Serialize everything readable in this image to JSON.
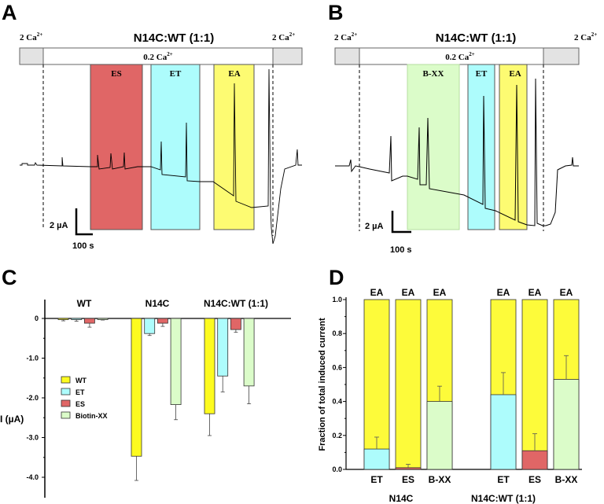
{
  "panels": {
    "A": {
      "letter": "A",
      "title": "N14C:WT (1:1)",
      "left_solution": "2 Ca",
      "right_solution": "2 Ca",
      "middle_solution": "0.2 Ca",
      "superscript": "2+",
      "windows": [
        {
          "label": "ES",
          "color": "#e06666"
        },
        {
          "label": "ET",
          "color": "#adfcfc"
        },
        {
          "label": "EA",
          "color": "#fdfb72"
        }
      ],
      "scale_current": "2 µA",
      "scale_time": "100 s"
    },
    "B": {
      "letter": "B",
      "title": "N14C:WT (1:1)",
      "left_solution": "2 Ca",
      "right_solution": "2 Ca",
      "middle_solution": "0.2 Ca",
      "superscript": "2+",
      "windows": [
        {
          "label": "B-XX",
          "color": "#dbfcc9"
        },
        {
          "label": "ET",
          "color": "#adfcfc"
        },
        {
          "label": "EA",
          "color": "#fdfb72"
        }
      ],
      "scale_current": "2 µA",
      "scale_time": "100 s"
    },
    "C": {
      "letter": "C"
    },
    "D": {
      "letter": "D"
    }
  },
  "chart_data": [
    {
      "type": "bar",
      "panel": "C",
      "ylabel": "I (µA)",
      "ylim": [
        -4.5,
        0.5
      ],
      "yticks": [
        "0",
        "-1.0",
        "-2.0",
        "-3.0",
        "-4.0"
      ],
      "categories": [
        "WT",
        "N14C",
        "N14C:WT (1:1)"
      ],
      "legend_position": "left",
      "series": [
        {
          "name": "WT",
          "color": "#fdfb1f",
          "values": [
            -0.03,
            -3.47,
            -2.4
          ],
          "errors": [
            0.03,
            0.61,
            0.55
          ]
        },
        {
          "name": "ET",
          "color": "#adfcfc",
          "values": [
            -0.02,
            -0.38,
            -1.45
          ],
          "errors": [
            0.05,
            0.05,
            0.4
          ]
        },
        {
          "name": "ES",
          "color": "#e06666",
          "values": [
            -0.12,
            -0.12,
            -0.28
          ],
          "errors": [
            0.1,
            0.08,
            0.07
          ]
        },
        {
          "name": "Biotin-XX",
          "color": "#dbfcc9",
          "values": [
            -0.03,
            -2.17,
            -1.7
          ],
          "errors": [
            0.01,
            0.38,
            0.45
          ]
        }
      ]
    },
    {
      "type": "bar",
      "stacked": true,
      "panel": "D",
      "ylabel": "Fraction of total induced current",
      "ylim": [
        0,
        1.0
      ],
      "yticks": [
        "0.0",
        "0.2",
        "0.4",
        "0.6",
        "0.8",
        "1.0"
      ],
      "groups": [
        "N14C",
        "N14C:WT (1:1)"
      ],
      "top_label": "EA",
      "top_color": "#fdfb3a",
      "bars": [
        {
          "group": "N14C",
          "label": "ET",
          "color": "#adfcfc",
          "value": 0.12,
          "error_top": 0.19
        },
        {
          "group": "N14C",
          "label": "ES",
          "color": "#e06666",
          "value": 0.01,
          "error_top": 0.03
        },
        {
          "group": "N14C",
          "label": "B-XX",
          "color": "#dbfcc9",
          "value": 0.4,
          "error_top": 0.49
        },
        {
          "group": "N14C:WT (1:1)",
          "label": "ET",
          "color": "#adfcfc",
          "value": 0.44,
          "error_top": 0.57
        },
        {
          "group": "N14C:WT (1:1)",
          "label": "ES",
          "color": "#e06666",
          "value": 0.11,
          "error_top": 0.21
        },
        {
          "group": "N14C:WT (1:1)",
          "label": "B-XX",
          "color": "#dbfcc9",
          "value": 0.53,
          "error_top": 0.67
        }
      ]
    }
  ]
}
